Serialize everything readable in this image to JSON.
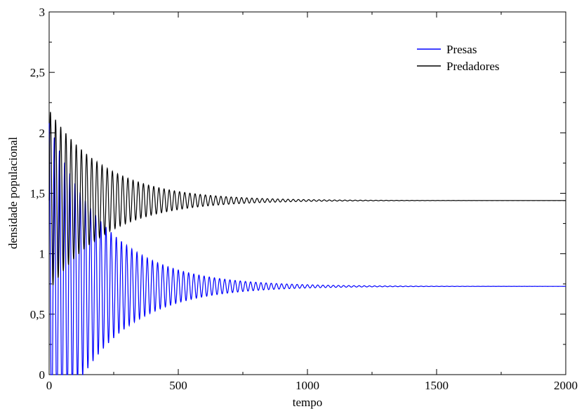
{
  "chart_data": {
    "type": "line",
    "title": "",
    "xlabel": "tempo",
    "ylabel": "densidade populacional",
    "xlim": [
      0,
      2000
    ],
    "ylim": [
      0,
      3
    ],
    "x_ticks": [
      0,
      500,
      1000,
      1500,
      2000
    ],
    "x_tick_labels": [
      "0",
      "500",
      "1000",
      "1500",
      "2000"
    ],
    "y_ticks": [
      0,
      0.5,
      1,
      1.5,
      2,
      2.5,
      3
    ],
    "y_tick_labels": [
      "0",
      "0,5",
      "1",
      "1,5",
      "2",
      "2,5",
      "3"
    ],
    "grid": false,
    "legend_position": "top-right",
    "series": [
      {
        "name": "Presas",
        "color": "#0000ff",
        "equilibrium": 0.73,
        "initial_amplitude": 1.35,
        "decay_per_unit_time": 0.0046,
        "period": 20,
        "x_range": [
          0,
          2000
        ]
      },
      {
        "name": "Predadores",
        "color": "#000000",
        "equilibrium": 1.44,
        "initial_amplitude": 0.75,
        "decay_per_unit_time": 0.0046,
        "period": 20,
        "x_range": [
          0,
          2000
        ]
      }
    ]
  }
}
